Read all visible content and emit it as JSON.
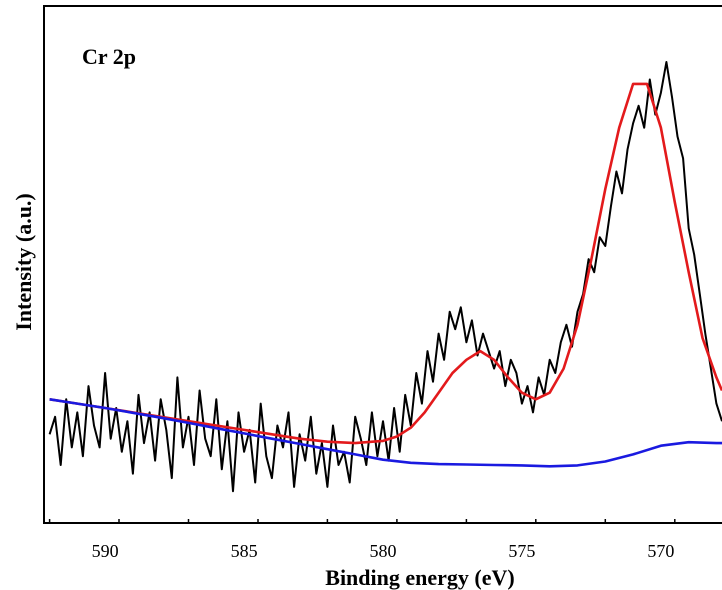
{
  "chart_data": {
    "type": "line",
    "title": "",
    "annotation": "Cr 2p",
    "xlabel": "Binding energy (eV)",
    "ylabel": "Intensity (a.u.)",
    "x_reversed": true,
    "xlim": [
      592.2,
      567.8
    ],
    "ylim": [
      0,
      1
    ],
    "x_ticks": [
      590,
      585,
      580,
      575,
      570
    ],
    "y_ticks_shown": false,
    "grid": false,
    "legend": "none",
    "series": [
      {
        "color": "#000000",
        "kind": "raw",
        "x": [
          592.0,
          591.8,
          591.6,
          591.4,
          591.2,
          591.0,
          590.8,
          590.6,
          590.4,
          590.2,
          590.0,
          589.8,
          589.6,
          589.4,
          589.2,
          589.0,
          588.8,
          588.6,
          588.4,
          588.2,
          588.0,
          587.8,
          587.6,
          587.4,
          587.2,
          587.0,
          586.8,
          586.6,
          586.4,
          586.2,
          586.0,
          585.8,
          585.6,
          585.4,
          585.2,
          585.0,
          584.8,
          584.6,
          584.4,
          584.2,
          584.0,
          583.8,
          583.6,
          583.4,
          583.2,
          583.0,
          582.8,
          582.6,
          582.4,
          582.2,
          582.0,
          581.8,
          581.6,
          581.4,
          581.2,
          581.0,
          580.8,
          580.6,
          580.4,
          580.2,
          580.0,
          579.8,
          579.6,
          579.4,
          579.2,
          579.0,
          578.8,
          578.6,
          578.4,
          578.2,
          578.0,
          577.8,
          577.6,
          577.4,
          577.2,
          577.0,
          576.8,
          576.6,
          576.4,
          576.2,
          576.0,
          575.8,
          575.6,
          575.4,
          575.2,
          575.0,
          574.8,
          574.6,
          574.4,
          574.2,
          574.0,
          573.8,
          573.6,
          573.4,
          573.2,
          573.0,
          572.8,
          572.6,
          572.4,
          572.2,
          572.0,
          571.8,
          571.6,
          571.4,
          571.2,
          571.0,
          570.8,
          570.6,
          570.4,
          570.2,
          570.0,
          569.8,
          569.6,
          569.4,
          569.2,
          569.0,
          568.8,
          568.6,
          568.4,
          568.2,
          568.0,
          567.8
        ],
        "y": [
          0.15,
          0.19,
          0.08,
          0.23,
          0.12,
          0.2,
          0.1,
          0.26,
          0.17,
          0.12,
          0.29,
          0.14,
          0.21,
          0.11,
          0.18,
          0.06,
          0.24,
          0.13,
          0.2,
          0.09,
          0.23,
          0.16,
          0.05,
          0.28,
          0.12,
          0.19,
          0.08,
          0.25,
          0.14,
          0.1,
          0.23,
          0.07,
          0.18,
          0.02,
          0.2,
          0.11,
          0.16,
          0.04,
          0.22,
          0.1,
          0.05,
          0.17,
          0.12,
          0.2,
          0.03,
          0.15,
          0.09,
          0.19,
          0.06,
          0.13,
          0.03,
          0.17,
          0.08,
          0.11,
          0.04,
          0.19,
          0.14,
          0.08,
          0.2,
          0.1,
          0.18,
          0.09,
          0.21,
          0.11,
          0.24,
          0.17,
          0.29,
          0.22,
          0.34,
          0.27,
          0.38,
          0.32,
          0.43,
          0.39,
          0.44,
          0.36,
          0.41,
          0.33,
          0.38,
          0.34,
          0.3,
          0.34,
          0.26,
          0.32,
          0.29,
          0.22,
          0.26,
          0.2,
          0.28,
          0.24,
          0.32,
          0.29,
          0.36,
          0.4,
          0.35,
          0.43,
          0.47,
          0.55,
          0.52,
          0.6,
          0.58,
          0.67,
          0.75,
          0.7,
          0.8,
          0.86,
          0.9,
          0.85,
          0.96,
          0.88,
          0.93,
          1.0,
          0.92,
          0.83,
          0.78,
          0.62,
          0.56,
          0.47,
          0.38,
          0.3,
          0.22,
          0.18
        ]
      },
      {
        "color": "#e31a1c",
        "kind": "fit",
        "x": [
          592.0,
          591.0,
          590.0,
          589.0,
          588.0,
          587.0,
          586.0,
          585.0,
          584.0,
          583.0,
          582.0,
          581.0,
          580.0,
          579.5,
          579.0,
          578.5,
          578.0,
          577.5,
          577.0,
          576.5,
          576.0,
          575.5,
          575.0,
          574.5,
          574.0,
          573.5,
          573.0,
          572.5,
          572.0,
          571.5,
          571.0,
          570.5,
          570.0,
          569.5,
          569.0,
          568.5,
          568.0,
          567.8
        ],
        "y": [
          0.23,
          0.22,
          0.21,
          0.2,
          0.19,
          0.18,
          0.17,
          0.16,
          0.15,
          0.14,
          0.133,
          0.13,
          0.135,
          0.145,
          0.165,
          0.2,
          0.245,
          0.29,
          0.32,
          0.34,
          0.32,
          0.28,
          0.245,
          0.23,
          0.245,
          0.3,
          0.4,
          0.55,
          0.71,
          0.85,
          0.95,
          0.95,
          0.85,
          0.68,
          0.52,
          0.37,
          0.28,
          0.25
        ]
      },
      {
        "color": "#1a1ae0",
        "kind": "background",
        "x": [
          592.0,
          591.0,
          590.0,
          589.0,
          588.0,
          587.0,
          586.0,
          585.0,
          584.0,
          583.0,
          582.0,
          581.0,
          580.0,
          579.0,
          578.0,
          577.0,
          576.0,
          575.0,
          574.0,
          573.0,
          572.0,
          571.0,
          570.0,
          569.0,
          568.0,
          567.8
        ],
        "y": [
          0.23,
          0.22,
          0.21,
          0.199,
          0.188,
          0.176,
          0.164,
          0.152,
          0.14,
          0.128,
          0.116,
          0.104,
          0.092,
          0.085,
          0.082,
          0.081,
          0.08,
          0.079,
          0.077,
          0.079,
          0.088,
          0.104,
          0.124,
          0.132,
          0.13,
          0.13
        ]
      }
    ]
  }
}
